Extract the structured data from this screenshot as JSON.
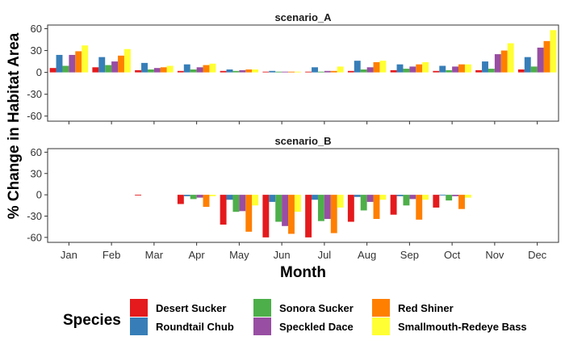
{
  "chart_data": {
    "type": "bar",
    "ylabel": "% Change in Habitat Area",
    "xlabel": "Month",
    "ylim": [
      -67,
      65
    ],
    "yticks": [
      -60,
      -30,
      0,
      30,
      60
    ],
    "categories": [
      "Jan",
      "Feb",
      "Mar",
      "Apr",
      "May",
      "Jun",
      "Jul",
      "Aug",
      "Sep",
      "Oct",
      "Nov",
      "Dec"
    ],
    "legend": {
      "title": "Species",
      "position": "bottom"
    },
    "species": [
      {
        "name": "Desert Sucker",
        "color": "#E41A1C"
      },
      {
        "name": "Roundtail Chub",
        "color": "#377EB8"
      },
      {
        "name": "Sonora Sucker",
        "color": "#4DAF4A"
      },
      {
        "name": "Speckled Dace",
        "color": "#984EA3"
      },
      {
        "name": "Red Shiner",
        "color": "#FF7F00"
      },
      {
        "name": "Smallmouth-Redeye Bass",
        "color": "#FFFF33"
      }
    ],
    "panels": [
      {
        "title": "scenario_A",
        "series": [
          {
            "name": "Desert Sucker",
            "values": [
              6,
              7,
              3,
              2,
              2,
              1,
              1,
              2,
              3,
              2,
              3,
              4
            ]
          },
          {
            "name": "Roundtail Chub",
            "values": [
              24,
              21,
              13,
              11,
              4,
              2,
              7,
              16,
              11,
              9,
              15,
              21
            ]
          },
          {
            "name": "Sonora Sucker",
            "values": [
              9,
              10,
              4,
              4,
              2,
              1,
              1,
              4,
              5,
              3,
              5,
              8
            ]
          },
          {
            "name": "Speckled Dace",
            "values": [
              24,
              15,
              6,
              7,
              3,
              1,
              2,
              7,
              8,
              8,
              25,
              34
            ]
          },
          {
            "name": "Red Shiner",
            "values": [
              29,
              23,
              7,
              10,
              4,
              1,
              2,
              14,
              11,
              11,
              30,
              43
            ]
          },
          {
            "name": "Smallmouth-Redeye Bass",
            "values": [
              37,
              32,
              9,
              12,
              4,
              1,
              8,
              16,
              14,
              11,
              40,
              58
            ]
          }
        ]
      },
      {
        "title": "scenario_B",
        "series": [
          {
            "name": "Desert Sucker",
            "values": [
              0,
              0,
              -1,
              -13,
              -42,
              -60,
              -60,
              -38,
              -28,
              -18,
              0,
              0
            ]
          },
          {
            "name": "Roundtail Chub",
            "values": [
              0,
              0,
              0,
              -2,
              -7,
              -10,
              -7,
              -3,
              -2,
              -1,
              0,
              0
            ]
          },
          {
            "name": "Sonora Sucker",
            "values": [
              0,
              0,
              0,
              -6,
              -24,
              -38,
              -37,
              -22,
              -15,
              -8,
              0,
              0
            ]
          },
          {
            "name": "Speckled Dace",
            "values": [
              0,
              0,
              0,
              -4,
              -23,
              -44,
              -34,
              -10,
              -6,
              -2,
              0,
              0
            ]
          },
          {
            "name": "Red Shiner",
            "values": [
              0,
              0,
              0,
              -17,
              -52,
              -55,
              -54,
              -34,
              -35,
              -20,
              0,
              0
            ]
          },
          {
            "name": "Smallmouth-Redeye Bass",
            "values": [
              0,
              0,
              0,
              -2,
              -15,
              -24,
              -18,
              -7,
              -7,
              -4,
              0,
              0
            ]
          }
        ]
      }
    ]
  }
}
